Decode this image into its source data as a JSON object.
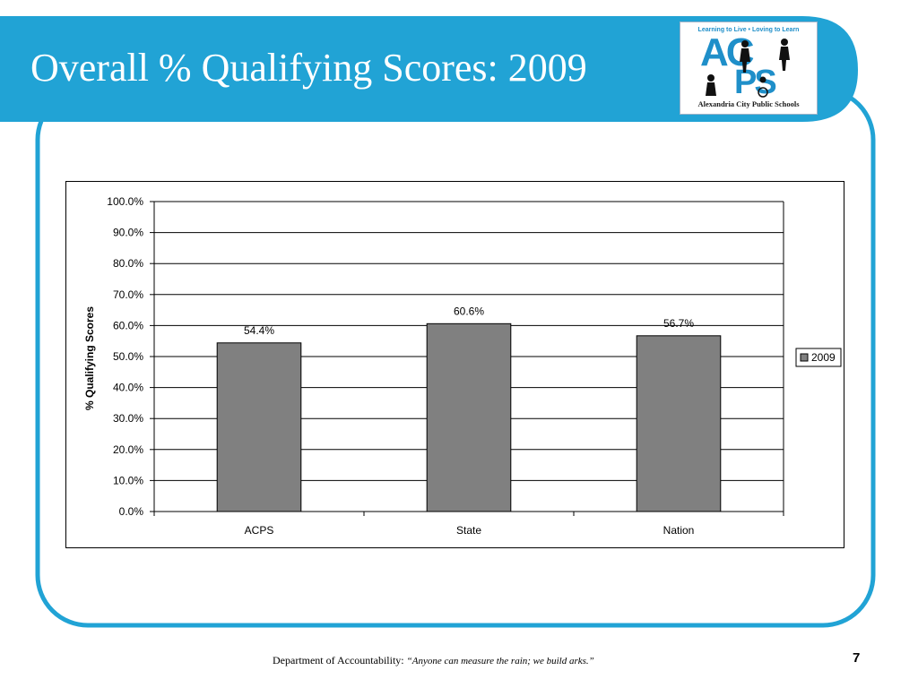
{
  "slide": {
    "title": "Overall % Qualifying Scores: 2009",
    "footer_label": "Department of Accountability: ",
    "footer_quote": "“Anyone can measure the rain; we build arks.”",
    "page_number": "7"
  },
  "logo": {
    "tagline": "Learning to Live • Loving to Learn",
    "letters_top": "AC",
    "letters_bottom": "PS",
    "name": "Alexandria City Public Schools"
  },
  "colors": {
    "banner": "#21a3d5",
    "bar_fill": "#808080",
    "logo_blue": "#1f8fc9"
  },
  "chart_data": {
    "type": "bar",
    "categories": [
      "ACPS",
      "State",
      "Nation"
    ],
    "series": [
      {
        "name": "2009",
        "values": [
          54.4,
          60.6,
          56.7
        ],
        "labels": [
          "54.4%",
          "60.6%",
          "56.7%"
        ]
      }
    ],
    "ylabel": "% Qualifying Scores",
    "ylim": [
      0,
      100
    ],
    "yticks": [
      0,
      10,
      20,
      30,
      40,
      50,
      60,
      70,
      80,
      90,
      100
    ],
    "ytick_labels": [
      "0.0%",
      "10.0%",
      "20.0%",
      "30.0%",
      "40.0%",
      "50.0%",
      "60.0%",
      "70.0%",
      "80.0%",
      "90.0%",
      "100.0%"
    ],
    "grid": true,
    "legend": "right"
  }
}
